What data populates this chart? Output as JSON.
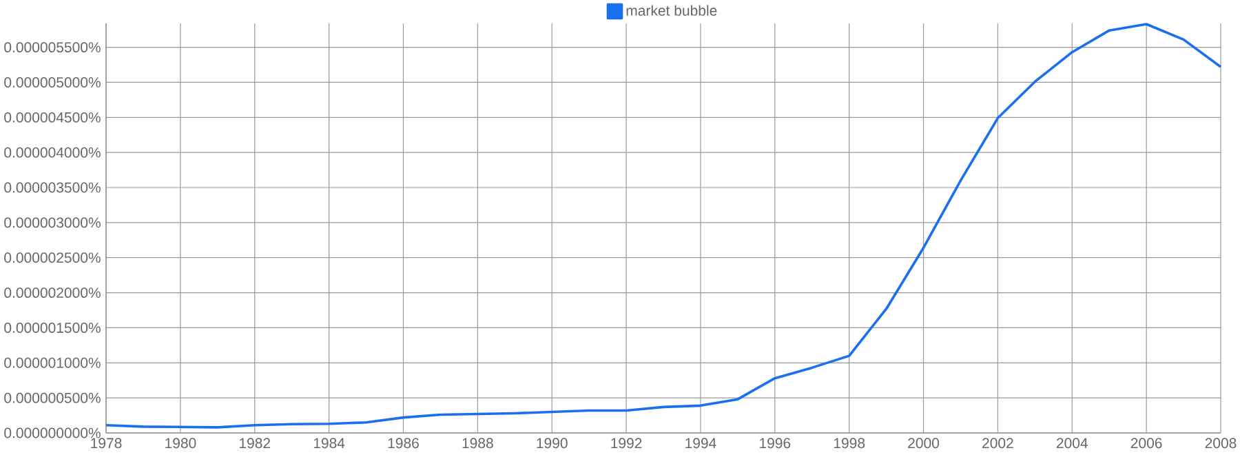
{
  "chart_data": {
    "type": "line",
    "x": [
      1978,
      1979,
      1980,
      1981,
      1982,
      1983,
      1984,
      1985,
      1986,
      1987,
      1988,
      1989,
      1990,
      1991,
      1992,
      1993,
      1994,
      1995,
      1996,
      1997,
      1998,
      1999,
      2000,
      2001,
      2002,
      2003,
      2004,
      2005,
      2006,
      2007,
      2008
    ],
    "series": [
      {
        "name": "market bubble",
        "color": "#1a6ff0",
        "values": [
          1.1e-07,
          9e-08,
          8.5e-08,
          8e-08,
          1.1e-07,
          1.25e-07,
          1.3e-07,
          1.5e-07,
          2.2e-07,
          2.6e-07,
          2.7e-07,
          2.8e-07,
          3e-07,
          3.2e-07,
          3.2e-07,
          3.7e-07,
          3.9e-07,
          4.8e-07,
          7.8e-07,
          9.3e-07,
          1.1e-06,
          1.77e-06,
          2.64e-06,
          3.6e-06,
          4.49e-06,
          5.01e-06,
          5.43e-06,
          5.74e-06,
          5.83e-06,
          5.61e-06,
          5.22e-06
        ]
      }
    ],
    "xlim": [
      1978,
      2008
    ],
    "xticks": [
      1978,
      1980,
      1982,
      1984,
      1986,
      1988,
      1990,
      1992,
      1994,
      1996,
      1998,
      2000,
      2002,
      2004,
      2006,
      2008
    ],
    "ylim": [
      0,
      5.84e-06
    ],
    "yticks": [
      {
        "value": 0,
        "label": "0.000000000%"
      },
      {
        "value": 5e-07,
        "label": "0.000000500%"
      },
      {
        "value": 1e-06,
        "label": "0.000001000%"
      },
      {
        "value": 1.5e-06,
        "label": "0.000001500%"
      },
      {
        "value": 2e-06,
        "label": "0.000002000%"
      },
      {
        "value": 2.5e-06,
        "label": "0.000002500%"
      },
      {
        "value": 3e-06,
        "label": "0.000003000%"
      },
      {
        "value": 3.5e-06,
        "label": "0.000003500%"
      },
      {
        "value": 4e-06,
        "label": "0.000004000%"
      },
      {
        "value": 4.5e-06,
        "label": "0.000004500%"
      },
      {
        "value": 5e-06,
        "label": "0.000005000%"
      },
      {
        "value": 5.5e-06,
        "label": "0.000005500%"
      }
    ],
    "grid": true,
    "legend": "top",
    "line_style": "solid"
  }
}
